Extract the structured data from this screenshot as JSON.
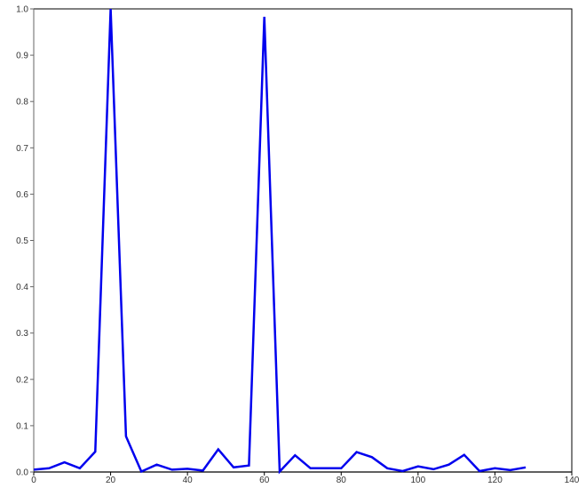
{
  "chart_data": {
    "type": "line",
    "title": "",
    "xlabel": "",
    "ylabel": "",
    "xlim": [
      0,
      140
    ],
    "ylim": [
      0,
      1.0
    ],
    "x_ticks": [
      "0",
      "20",
      "40",
      "60",
      "80",
      "100",
      "120",
      "140"
    ],
    "y_ticks": [
      "0.0",
      "0.1",
      "0.2",
      "0.3",
      "0.4",
      "0.5",
      "0.6",
      "0.7",
      "0.8",
      "0.9",
      "1.0"
    ],
    "grid": false,
    "series": [
      {
        "color": "#0000ee",
        "x": [
          0,
          4,
          8,
          12,
          16,
          20,
          24,
          28,
          32,
          36,
          40,
          44,
          48,
          52,
          56,
          60,
          64,
          68,
          72,
          76,
          80,
          84,
          88,
          92,
          96,
          100,
          104,
          108,
          112,
          116,
          120,
          124,
          128
        ],
        "y": [
          0.005,
          0.008,
          0.021,
          0.008,
          0.044,
          1.0,
          0.077,
          0.001,
          0.016,
          0.005,
          0.007,
          0.003,
          0.049,
          0.01,
          0.014,
          0.983,
          0.001,
          0.036,
          0.008,
          0.008,
          0.008,
          0.043,
          0.032,
          0.008,
          0.002,
          0.012,
          0.006,
          0.016,
          0.037,
          0.002,
          0.008,
          0.004,
          0.01
        ]
      }
    ]
  }
}
